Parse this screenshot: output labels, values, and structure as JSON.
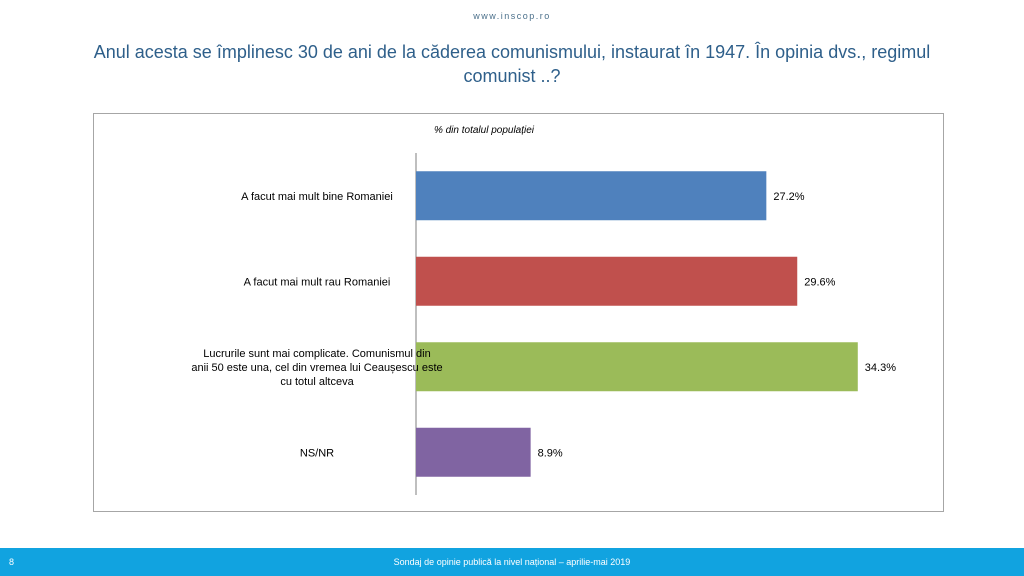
{
  "header": {
    "site_url": "www.inscop.ro",
    "title": "Anul acesta se împlinesc 30 de ani de la căderea comunismului, instaurat în 1947. În opinia dvs., regimul comunist ..?"
  },
  "footer": {
    "page_number": "8",
    "text": "Sondaj de opinie publică la nivel național – aprilie-mai 2019"
  },
  "chart_data": {
    "type": "bar",
    "orientation": "horizontal",
    "subtitle": "% din totalul populației",
    "categories": [
      "A facut mai mult bine Romaniei",
      "A facut mai mult rau Romaniei",
      "Lucrurile sunt mai complicate. Comunismul din anii 50 este una, cel din vremea lui Ceaușescu este cu totul altceva",
      "NS/NR"
    ],
    "category_lines": [
      [
        "A facut mai mult bine Romaniei"
      ],
      [
        "A facut mai mult rau Romaniei"
      ],
      [
        "Lucrurile sunt mai complicate. Comunismul din",
        "anii 50 este una, cel din vremea lui Ceaușescu este",
        "cu totul altceva"
      ],
      [
        "NS/NR"
      ]
    ],
    "values": [
      27.2,
      29.6,
      34.3,
      8.9
    ],
    "value_labels": [
      "27.2%",
      "29.6%",
      "34.3%",
      "8.9%"
    ],
    "colors": [
      "#4f81bd",
      "#c0504d",
      "#9bbb59",
      "#8064a2"
    ],
    "xlim": [
      0,
      50
    ],
    "grid": false,
    "legend": "none"
  }
}
